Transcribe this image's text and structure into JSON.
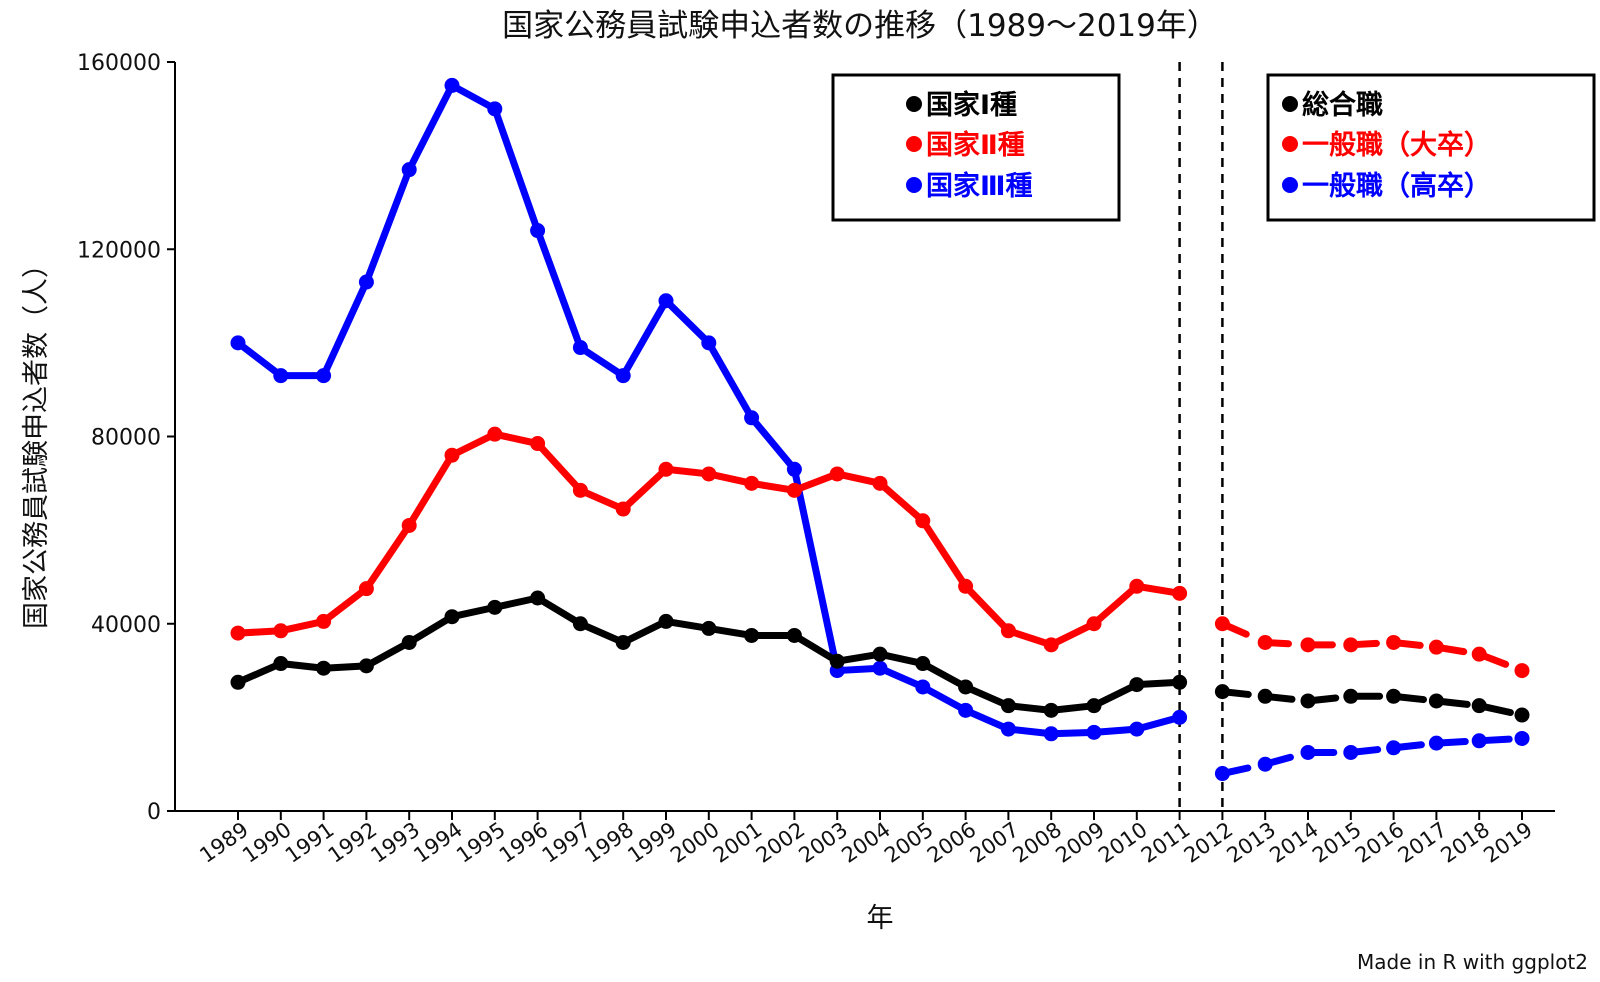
{
  "chart_data": {
    "type": "line",
    "title": "国家公務員試験申込者数の推移（1989〜2019年）",
    "xlabel": "年",
    "ylabel": "国家公務員試験申込者数（人）",
    "credit": "Made in R with ggplot2",
    "ylim": [
      0,
      160000
    ],
    "yticks": [
      "0",
      "40000",
      "80000",
      "120000",
      "160000"
    ],
    "x": [
      "1989",
      "1990",
      "1991",
      "1992",
      "1993",
      "1994",
      "1995",
      "1996",
      "1997",
      "1998",
      "1999",
      "2000",
      "2001",
      "2002",
      "2003",
      "2004",
      "2005",
      "2006",
      "2007",
      "2008",
      "2009",
      "2010",
      "2011",
      "2012",
      "2013",
      "2014",
      "2015",
      "2016",
      "2017",
      "2018",
      "2019"
    ],
    "period_dividers": [
      "2011",
      "2012"
    ],
    "legend_old": {
      "placement": "top-center",
      "entries": [
        {
          "label": "国家Ⅰ種",
          "color": "#000000"
        },
        {
          "label": "国家Ⅱ種",
          "color": "#ff0000"
        },
        {
          "label": "国家Ⅲ種",
          "color": "#0000ff"
        }
      ]
    },
    "legend_new": {
      "placement": "top-right",
      "entries": [
        {
          "label": "総合職",
          "color": "#000000"
        },
        {
          "label": "一般職（大卒）",
          "color": "#ff0000"
        },
        {
          "label": "一般職（高卒）",
          "color": "#0000ff"
        }
      ]
    },
    "series": [
      {
        "color": "#0000ff",
        "style": "solid",
        "x": [
          "1989",
          "1990",
          "1991",
          "1992",
          "1993",
          "1994",
          "1995",
          "1996",
          "1997",
          "1998",
          "1999",
          "2000",
          "2001",
          "2002",
          "2003",
          "2004",
          "2005",
          "2006",
          "2007",
          "2008",
          "2009",
          "2010",
          "2011"
        ],
        "values": [
          100000,
          93000,
          93000,
          113000,
          137000,
          155000,
          150000,
          124000,
          99000,
          93000,
          109000,
          100000,
          84000,
          73000,
          30000,
          30500,
          26500,
          21500,
          17500,
          16500,
          16800,
          17500,
          20000
        ]
      },
      {
        "color": "#ff0000",
        "style": "solid",
        "x": [
          "1989",
          "1990",
          "1991",
          "1992",
          "1993",
          "1994",
          "1995",
          "1996",
          "1997",
          "1998",
          "1999",
          "2000",
          "2001",
          "2002",
          "2003",
          "2004",
          "2005",
          "2006",
          "2007",
          "2008",
          "2009",
          "2010",
          "2011"
        ],
        "values": [
          38000,
          38500,
          40500,
          47500,
          61000,
          76000,
          80500,
          78500,
          68500,
          64500,
          73000,
          72000,
          70000,
          68500,
          72000,
          70000,
          62000,
          48000,
          38500,
          35500,
          40000,
          48000,
          46500
        ]
      },
      {
        "color": "#000000",
        "style": "solid",
        "x": [
          "1989",
          "1990",
          "1991",
          "1992",
          "1993",
          "1994",
          "1995",
          "1996",
          "1997",
          "1998",
          "1999",
          "2000",
          "2001",
          "2002",
          "2003",
          "2004",
          "2005",
          "2006",
          "2007",
          "2008",
          "2009",
          "2010",
          "2011"
        ],
        "values": [
          27500,
          31500,
          30500,
          31000,
          36000,
          41500,
          43500,
          45500,
          40000,
          36000,
          40500,
          39000,
          37500,
          37500,
          32000,
          33500,
          31500,
          26500,
          22500,
          21500,
          22500,
          27000,
          27500
        ]
      },
      {
        "color": "#ff0000",
        "style": "dashed",
        "x": [
          "2012",
          "2013",
          "2014",
          "2015",
          "2016",
          "2017",
          "2018",
          "2019"
        ],
        "values": [
          40000,
          36000,
          35500,
          35500,
          36000,
          35000,
          33500,
          30000
        ]
      },
      {
        "color": "#000000",
        "style": "dashed",
        "x": [
          "2012",
          "2013",
          "2014",
          "2015",
          "2016",
          "2017",
          "2018",
          "2019"
        ],
        "values": [
          25500,
          24500,
          23500,
          24500,
          24500,
          23500,
          22500,
          20500
        ]
      },
      {
        "color": "#0000ff",
        "style": "dashed",
        "x": [
          "2012",
          "2013",
          "2014",
          "2015",
          "2016",
          "2017",
          "2018",
          "2019"
        ],
        "values": [
          8000,
          10000,
          12500,
          12500,
          13500,
          14500,
          15000,
          15500
        ]
      }
    ]
  }
}
